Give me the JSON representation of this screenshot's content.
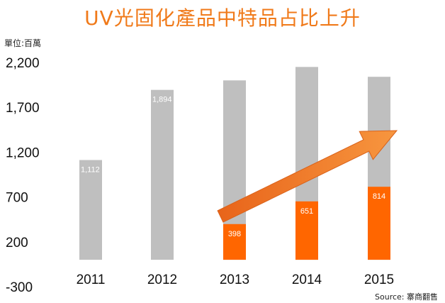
{
  "chart_data": {
    "type": "bar",
    "title": "UV光固化產品中特品占比上升",
    "ylabel": "單位:百萬",
    "categories": [
      "2011",
      "2012",
      "2013",
      "2014",
      "2015"
    ],
    "series": [
      {
        "values": [
          1112,
          1894,
          2000,
          2150,
          2040
        ],
        "color": "#BFBFBF"
      },
      {
        "values": [
          null,
          null,
          398,
          651,
          814
        ],
        "color": "#FF6600"
      }
    ],
    "data_labels": [
      "1,112",
      "1,894",
      "398",
      "651",
      "814"
    ],
    "yticks": [
      "2,200",
      "1,700",
      "1,200",
      "700",
      "200",
      "-300"
    ],
    "ylim": [
      -300,
      2200
    ],
    "grid": false,
    "legend": "none",
    "trend_arrow": {
      "from_category": "2013",
      "to_category": "2015",
      "color": "#F07A1A"
    }
  },
  "source": "Source: 寨商翻售"
}
